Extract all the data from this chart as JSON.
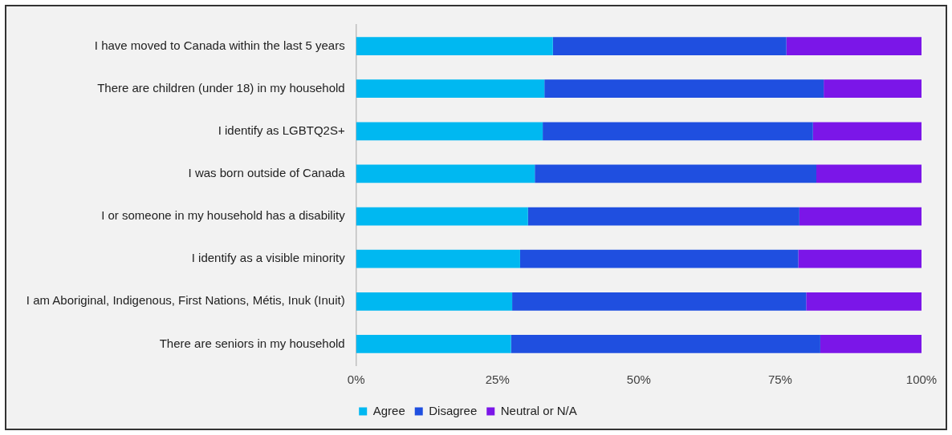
{
  "chart_data": {
    "type": "bar",
    "orientation": "horizontal",
    "stacked": true,
    "categories": [
      "I have moved to Canada within the last 5 years",
      "There are children (under 18) in my household",
      "I identify as LGBTQ2S+",
      "I was born outside of Canada",
      "I or someone in my household has a disability",
      "I identify as a visible minority",
      "I am Aboriginal, Indigenous, First Nations, Métis, Inuk (Inuit)",
      "There are seniors in my household"
    ],
    "series": [
      {
        "name": "Agree",
        "color": "#00b8f1",
        "values": [
          34.8,
          33.3,
          33.0,
          31.6,
          30.4,
          29.0,
          27.6,
          27.4
        ]
      },
      {
        "name": "Disagree",
        "color": "#1f4fe0",
        "values": [
          41.3,
          49.4,
          47.8,
          49.8,
          48.0,
          49.2,
          52.0,
          54.7
        ]
      },
      {
        "name": "Neutral or N/A",
        "color": "#7b16e8",
        "values": [
          23.9,
          17.3,
          19.2,
          18.6,
          21.6,
          21.8,
          20.4,
          17.9
        ]
      }
    ],
    "xlim": [
      0,
      100
    ],
    "xticks": [
      {
        "value": 0,
        "label": "0%"
      },
      {
        "value": 25,
        "label": "25%"
      },
      {
        "value": 50,
        "label": "50%"
      },
      {
        "value": 75,
        "label": "75%"
      },
      {
        "value": 100,
        "label": "100%"
      }
    ],
    "grid": false,
    "legend": "bottom"
  }
}
